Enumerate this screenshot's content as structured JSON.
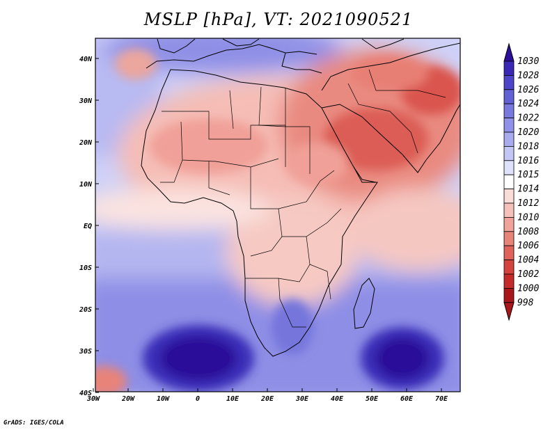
{
  "title": "MSLP [hPa], VT: 2021090521",
  "credit": "GrADS: IGES/COLA",
  "lon_ticks": [
    "30W",
    "20W",
    "10W",
    "0",
    "10E",
    "20E",
    "30E",
    "40E",
    "50E",
    "60E",
    "70E"
  ],
  "lat_ticks": [
    "40N",
    "30N",
    "20N",
    "10N",
    "EQ",
    "10S",
    "20S",
    "30S",
    "40S"
  ],
  "colorbar": {
    "labels": [
      "1030",
      "1028",
      "1026",
      "1024",
      "1022",
      "1020",
      "1018",
      "1016",
      "1015",
      "1014",
      "1012",
      "1010",
      "1008",
      "1006",
      "1004",
      "1002",
      "1000",
      "998"
    ],
    "colors": [
      "#2e0f99",
      "#3a27b3",
      "#4d44c7",
      "#6262d4",
      "#7878df",
      "#9191e8",
      "#aaaaef",
      "#c4c7f5",
      "#e0e2fb",
      "#ffffff",
      "#fbdcd8",
      "#f6c1bb",
      "#f0a39a",
      "#e88379",
      "#df635b",
      "#d4443f",
      "#c42c2b",
      "#a8171a"
    ]
  },
  "chart_data": {
    "type": "heatmap",
    "title": "MSLP [hPa], VT: 2021090521",
    "variable": "Mean sea level pressure",
    "units": "hPa",
    "valid_time": "2021090521",
    "lon_range": [
      -30,
      75
    ],
    "lat_range": [
      -40,
      45
    ],
    "color_levels": [
      998,
      1000,
      1002,
      1004,
      1006,
      1008,
      1010,
      1012,
      1014,
      1015,
      1016,
      1018,
      1020,
      1022,
      1024,
      1026,
      1028,
      1030
    ]
  }
}
